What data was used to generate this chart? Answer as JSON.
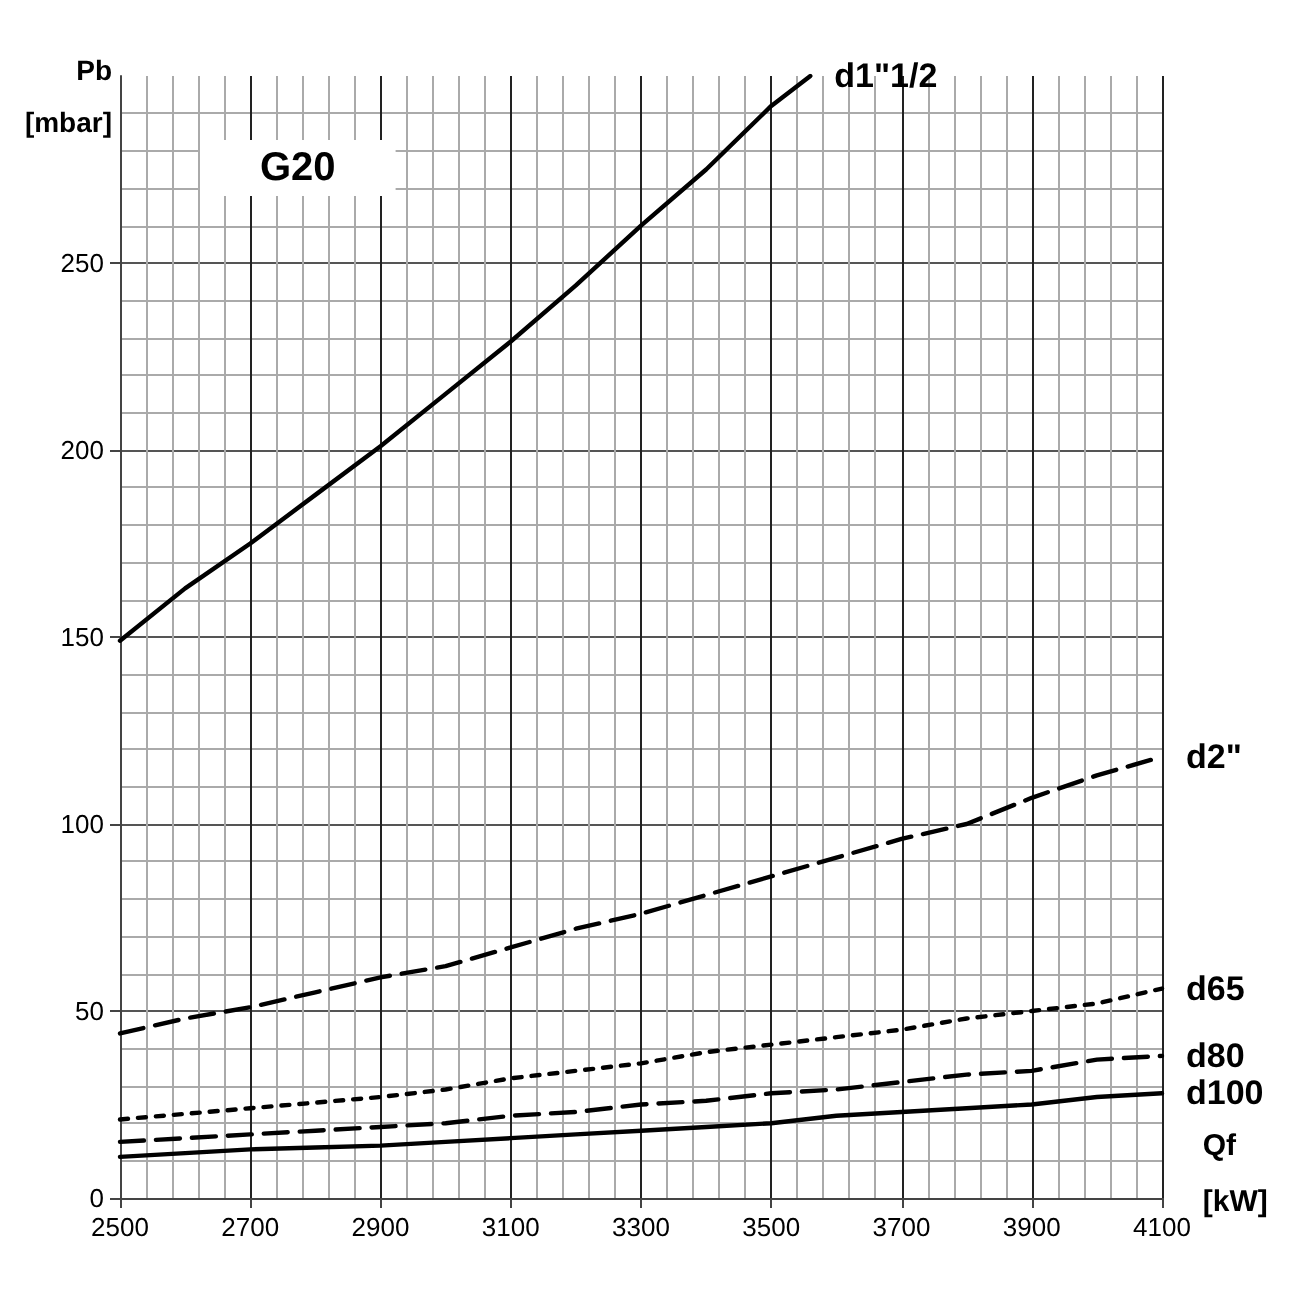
{
  "chart_data": {
    "type": "line",
    "xlabel": "Qf [kW]",
    "ylabel": "Pb [mbar]",
    "annotations": [
      "G20"
    ],
    "xlim": [
      2500,
      4100
    ],
    "xticks": [
      2500,
      2700,
      2900,
      3100,
      3300,
      3500,
      3700,
      3900,
      4100
    ],
    "ylim": [
      0,
      300
    ],
    "yticks": [
      0,
      50,
      100,
      150,
      200,
      250
    ],
    "grid": true,
    "legend": false,
    "marker": "none",
    "series": [
      {
        "name": "d1\"1/2",
        "color": "#000000",
        "line_style": "solid",
        "x": [
          2500,
          2600,
          2700,
          2800,
          2900,
          3000,
          3100,
          3200,
          3300,
          3400,
          3500,
          3560
        ],
        "values": [
          149,
          163,
          175,
          188,
          201,
          215,
          229,
          244,
          260,
          275,
          292,
          300
        ]
      },
      {
        "name": "d2\"",
        "color": "#000000",
        "line_style": "dashed",
        "x": [
          2500,
          2600,
          2700,
          2800,
          2900,
          3000,
          3100,
          3200,
          3300,
          3400,
          3500,
          3600,
          3700,
          3800,
          3900,
          4000,
          4100
        ],
        "values": [
          44,
          48,
          51,
          55,
          59,
          62,
          67,
          72,
          76,
          81,
          86,
          91,
          96,
          100,
          107,
          113,
          118
        ]
      },
      {
        "name": "d65",
        "color": "#000000",
        "line_style": "dotted",
        "x": [
          2500,
          2700,
          2900,
          3000,
          3100,
          3200,
          3300,
          3400,
          3500,
          3600,
          3700,
          3800,
          3900,
          4000,
          4100
        ],
        "values": [
          21,
          24,
          27,
          29,
          32,
          34,
          36,
          39,
          41,
          43,
          45,
          48,
          50,
          52,
          56
        ]
      },
      {
        "name": "d80",
        "color": "#000000",
        "line_style": "dashed",
        "x": [
          2500,
          2600,
          2700,
          2800,
          2900,
          3000,
          3100,
          3200,
          3300,
          3400,
          3500,
          3600,
          3700,
          3800,
          3900,
          4000,
          4100
        ],
        "values": [
          15,
          16,
          17,
          18,
          19,
          20,
          22,
          23,
          25,
          26,
          28,
          29,
          31,
          33,
          34,
          37,
          38
        ]
      },
      {
        "name": "d100",
        "color": "#000000",
        "line_style": "solid",
        "x": [
          2500,
          2600,
          2700,
          2800,
          2900,
          3000,
          3100,
          3200,
          3300,
          3400,
          3500,
          3600,
          3700,
          3800,
          3900,
          4000,
          4100
        ],
        "values": [
          11,
          12,
          13,
          13.5,
          14,
          15,
          16,
          17,
          18,
          19,
          20,
          22,
          23,
          24,
          25,
          27,
          28
        ]
      }
    ]
  }
}
